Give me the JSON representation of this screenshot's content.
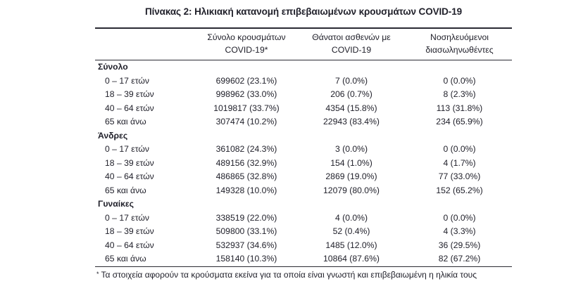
{
  "page": {
    "title": "Πίνακας 2: Ηλικιακή κατανομή επιβεβαιωμένων κρουσμάτων COVID-19"
  },
  "table": {
    "header": {
      "cases": {
        "line1": "Σύνολο κρουσμάτων",
        "line2": "COVID-19*"
      },
      "deaths": {
        "line1": "Θάνατοι ασθενών με",
        "line2": "COVID-19"
      },
      "intubated": {
        "line1": "Νοσηλευόμενοι",
        "line2": "διασωληνωθέντες"
      }
    },
    "sections": [
      {
        "label": "Σύνολο",
        "rows": [
          {
            "age": "0 – 17 ετών",
            "cases": "699602 (23.1%)",
            "deaths": "7 (0.0%)",
            "intubated": "0 (0.0%)"
          },
          {
            "age": "18 – 39 ετών",
            "cases": "998962 (33.0%)",
            "deaths": "206 (0.7%)",
            "intubated": "8 (2.3%)"
          },
          {
            "age": "40 – 64 ετών",
            "cases": "1019817 (33.7%)",
            "deaths": "4354 (15.8%)",
            "intubated": "113 (31.8%)"
          },
          {
            "age": "65 και άνω",
            "cases": "307474 (10.2%)",
            "deaths": "22943 (83.4%)",
            "intubated": "234 (65.9%)"
          }
        ]
      },
      {
        "label": "Άνδρες",
        "rows": [
          {
            "age": "0 – 17 ετών",
            "cases": "361082 (24.3%)",
            "deaths": "3 (0.0%)",
            "intubated": "0 (0.0%)"
          },
          {
            "age": "18 – 39 ετών",
            "cases": "489156 (32.9%)",
            "deaths": "154 (1.0%)",
            "intubated": "4 (1.7%)"
          },
          {
            "age": "40 – 64 ετών",
            "cases": "486865 (32.8%)",
            "deaths": "2869 (19.0%)",
            "intubated": "77 (33.0%)"
          },
          {
            "age": "65 και άνω",
            "cases": "149328 (10.0%)",
            "deaths": "12079 (80.0%)",
            "intubated": "152 (65.2%)"
          }
        ]
      },
      {
        "label": "Γυναίκες",
        "rows": [
          {
            "age": "0 – 17 ετών",
            "cases": "338519 (22.0%)",
            "deaths": "4 (0.0%)",
            "intubated": "0 (0.0%)"
          },
          {
            "age": "18 – 39 ετών",
            "cases": "509800 (33.1%)",
            "deaths": "52 (0.4%)",
            "intubated": "4 (3.3%)"
          },
          {
            "age": "40 – 64 ετών",
            "cases": "532937 (34.6%)",
            "deaths": "1485 (12.0%)",
            "intubated": "36 (29.5%)"
          },
          {
            "age": "65 και άνω",
            "cases": "158140 (10.3%)",
            "deaths": "10864 (87.6%)",
            "intubated": "82 (67.2%)"
          }
        ]
      }
    ],
    "footnote": {
      "marker": "*",
      "text": "Τα στοιχεία αφορούν τα κρούσματα εκείνα για τα οποία είναι γνωστή και επιβεβαιωμένη η ηλικία τους"
    }
  }
}
